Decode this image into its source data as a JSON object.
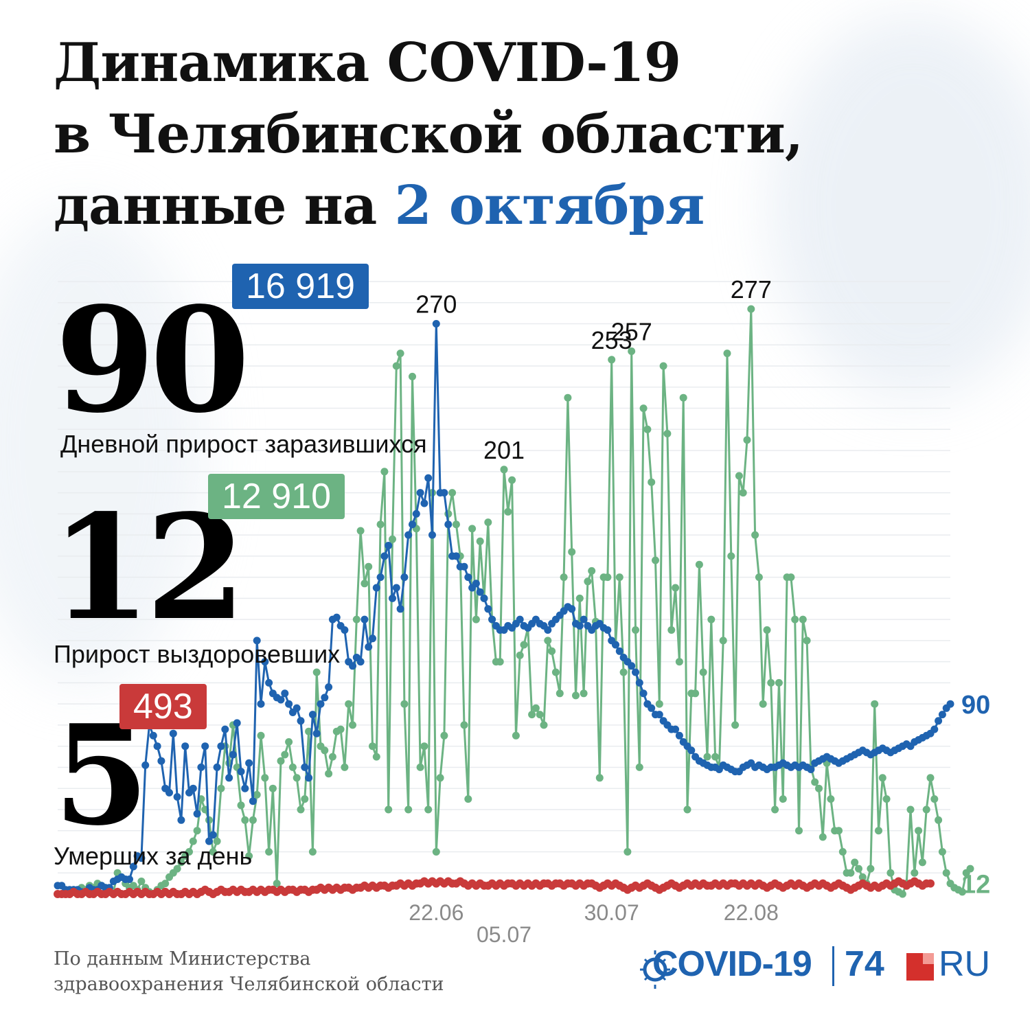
{
  "title": {
    "line1": "Динамика COVID-19",
    "line2": "в Челябинской области,",
    "line3_prefix": "данные на ",
    "line3_accent": "2 октября"
  },
  "stats": {
    "infected": {
      "value": "90",
      "total": "16 919",
      "label": "Дневной прирост заразившихся",
      "color": "#1f63b0"
    },
    "recovered": {
      "value": "12",
      "total": "12 910",
      "label": "Прирост выздоровевших",
      "color": "#6cb383"
    },
    "deaths": {
      "value": "5",
      "total": "493",
      "label": "Умерших за день",
      "color": "#c93a3a"
    }
  },
  "footer": {
    "line1": "По данным Министерства",
    "line2": "здравоохранения Челябинской области"
  },
  "logo": {
    "covid": "COVID-19",
    "num": "74",
    "ru": "RU"
  },
  "chart_data": {
    "type": "line",
    "ylim": [
      0,
      290
    ],
    "x_tick_labels": [
      "22.06",
      "05.07",
      "30.07",
      "22.08"
    ],
    "series": [
      {
        "color": "#1f63b0",
        "end_label": "90",
        "values": [
          4,
          4,
          2,
          2,
          2,
          2,
          1,
          1,
          3,
          2,
          2,
          4,
          3,
          3,
          6,
          7,
          8,
          7,
          7,
          13,
          18,
          17,
          61,
          80,
          75,
          70,
          63,
          50,
          48,
          76,
          46,
          35,
          70,
          48,
          50,
          38,
          60,
          70,
          25,
          28,
          60,
          70,
          78,
          55,
          66,
          81,
          58,
          50,
          62,
          44,
          120,
          90,
          110,
          100,
          95,
          93,
          92,
          95,
          90,
          86,
          88,
          82,
          60,
          55,
          85,
          76,
          90,
          93,
          98,
          130,
          131,
          127,
          125,
          110,
          108,
          112,
          110,
          130,
          117,
          121,
          145,
          150,
          160,
          165,
          140,
          145,
          135,
          150,
          170,
          175,
          180,
          190,
          185,
          197,
          170,
          270,
          190,
          190,
          175,
          160,
          160,
          155,
          155,
          150,
          145,
          147,
          143,
          140,
          135,
          130,
          127,
          125,
          125,
          127,
          126,
          128,
          130,
          127,
          126,
          128,
          130,
          128,
          127,
          125,
          128,
          130,
          132,
          134,
          136,
          135,
          128,
          127,
          130,
          127,
          125,
          127,
          128,
          126,
          125,
          120,
          118,
          115,
          112,
          110,
          108,
          105,
          100,
          95,
          90,
          88,
          85,
          85,
          82,
          80,
          78,
          78,
          75,
          72,
          70,
          68,
          65,
          63,
          62,
          61,
          60,
          60,
          59,
          61,
          60,
          59,
          58,
          58,
          60,
          61,
          62,
          60,
          61,
          60,
          59,
          60,
          60,
          61,
          62,
          61,
          60,
          61,
          60,
          61,
          60,
          59,
          62,
          63,
          64,
          65,
          64,
          63,
          62,
          63,
          64,
          65,
          66,
          67,
          68,
          67,
          66,
          67,
          68,
          69,
          68,
          67,
          68,
          69,
          70,
          71,
          70,
          72,
          73,
          74,
          75,
          76,
          78,
          82,
          85,
          88,
          90
        ]
      },
      {
        "color": "#6cb383",
        "end_label": "12",
        "values": [
          0,
          0,
          0,
          1,
          2,
          1,
          3,
          2,
          4,
          3,
          5,
          4,
          3,
          2,
          1,
          10,
          8,
          5,
          3,
          4,
          2,
          6,
          3,
          1,
          0,
          2,
          4,
          5,
          8,
          10,
          12,
          15,
          18,
          20,
          25,
          30,
          45,
          40,
          35,
          20,
          25,
          50,
          70,
          62,
          80,
          60,
          42,
          35,
          18,
          35,
          47,
          75,
          55,
          20,
          50,
          5,
          63,
          66,
          72,
          60,
          55,
          40,
          45,
          77,
          20,
          105,
          70,
          68,
          57,
          65,
          77,
          78,
          60,
          90,
          80,
          130,
          172,
          147,
          155,
          70,
          65,
          175,
          200,
          40,
          168,
          250,
          256,
          90,
          40,
          245,
          173,
          60,
          70,
          40,
          190,
          20,
          55,
          75,
          180,
          190,
          175,
          160,
          80,
          45,
          173,
          130,
          167,
          140,
          176,
          130,
          110,
          110,
          201,
          181,
          196,
          75,
          113,
          118,
          126,
          85,
          88,
          85,
          80,
          120,
          115,
          105,
          95,
          150,
          235,
          162,
          94,
          140,
          95,
          148,
          153,
          129,
          55,
          150,
          150,
          253,
          118,
          150,
          105,
          20,
          257,
          125,
          60,
          230,
          220,
          195,
          158,
          90,
          250,
          218,
          125,
          145,
          110,
          235,
          40,
          95,
          95,
          156,
          105,
          65,
          130,
          65,
          60,
          120,
          256,
          160,
          80,
          198,
          190,
          215,
          277,
          170,
          150,
          90,
          125,
          100,
          40,
          100,
          45,
          150,
          150,
          130,
          30,
          130,
          120,
          60,
          53,
          50,
          27,
          62,
          45,
          30,
          30,
          20,
          10,
          10,
          15,
          12,
          8,
          5,
          12,
          90,
          30,
          55,
          45,
          10,
          2,
          1,
          0,
          5,
          40,
          10,
          30,
          15,
          40,
          55,
          45,
          35,
          20,
          10,
          5,
          3,
          2,
          1,
          10,
          12
        ]
      },
      {
        "color": "#c93a3a",
        "values": [
          0,
          0,
          0,
          0,
          1,
          0,
          0,
          1,
          0,
          0,
          1,
          0,
          0,
          1,
          0,
          1,
          0,
          0,
          1,
          0,
          1,
          0,
          1,
          0,
          0,
          1,
          0,
          1,
          0,
          1,
          0,
          0,
          1,
          0,
          1,
          0,
          1,
          2,
          1,
          0,
          1,
          2,
          1,
          1,
          2,
          1,
          2,
          1,
          1,
          2,
          1,
          2,
          1,
          2,
          2,
          1,
          2,
          1,
          2,
          2,
          1,
          2,
          2,
          1,
          2,
          2,
          3,
          2,
          3,
          2,
          3,
          2,
          3,
          3,
          2,
          3,
          3,
          4,
          3,
          4,
          3,
          4,
          4,
          3,
          4,
          4,
          5,
          4,
          5,
          4,
          5,
          5,
          6,
          5,
          6,
          5,
          6,
          5,
          6,
          5,
          5,
          6,
          5,
          4,
          5,
          4,
          5,
          4,
          4,
          5,
          4,
          5,
          4,
          5,
          5,
          4,
          5,
          4,
          5,
          4,
          5,
          4,
          5,
          5,
          4,
          5,
          5,
          4,
          5,
          5,
          4,
          5,
          4,
          5,
          5,
          4,
          3,
          4,
          5,
          4,
          5,
          4,
          3,
          2,
          3,
          4,
          3,
          4,
          5,
          4,
          3,
          2,
          3,
          4,
          5,
          4,
          3,
          4,
          5,
          4,
          5,
          4,
          5,
          4,
          4,
          5,
          4,
          5,
          4,
          5,
          5,
          4,
          5,
          4,
          5,
          4,
          5,
          4,
          3,
          4,
          5,
          4,
          3,
          4,
          5,
          4,
          5,
          4,
          3,
          4,
          5,
          4,
          5,
          4,
          3,
          4,
          5,
          4,
          3,
          2,
          3,
          4,
          5,
          4,
          3,
          4,
          3,
          4,
          5,
          4,
          5,
          6,
          5,
          4,
          5,
          6,
          5,
          4,
          5,
          5
        ]
      }
    ],
    "annotations": [
      {
        "text": "270",
        "series": 0,
        "index": 95
      },
      {
        "text": "201",
        "series": 1,
        "index": 112
      },
      {
        "text": "253",
        "series": 1,
        "index": 139
      },
      {
        "text": "257",
        "series": 1,
        "index": 144
      },
      {
        "text": "277",
        "series": 1,
        "index": 174
      }
    ]
  }
}
